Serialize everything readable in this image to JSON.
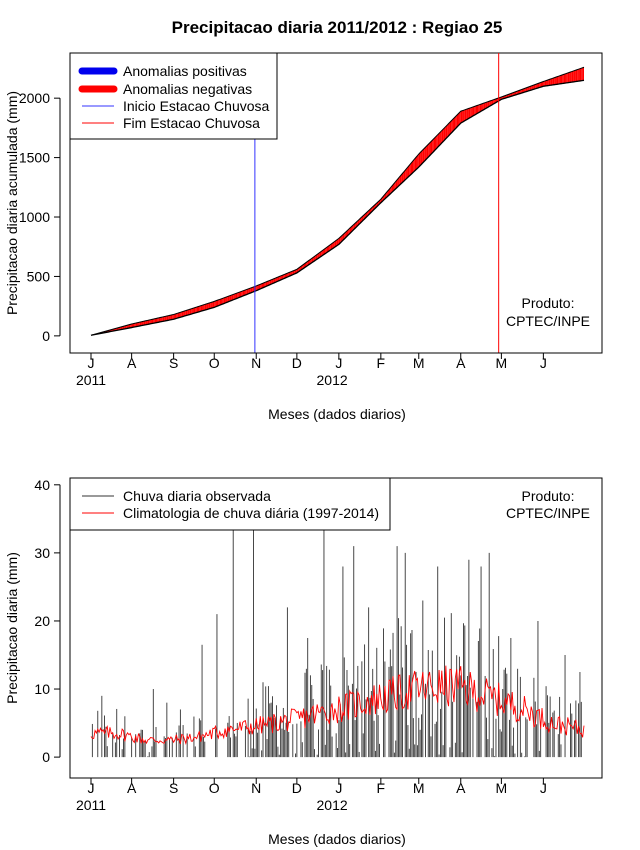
{
  "colors": {
    "positive": "#0000ee",
    "negative": "#ff0000",
    "start_line": "#3333ff",
    "end_line": "#ff0000",
    "observed": "#000000",
    "climatology": "#ff0000"
  },
  "chart_data": [
    {
      "type": "area",
      "title": "Precipitacao diaria 2011/2012 : Regiao 25",
      "xlabel": "Meses (dados diarios)",
      "ylabel": "Precipitacao diaria acumulada (mm)",
      "ylim": [
        -60,
        2380
      ],
      "yticks": [
        0,
        500,
        1000,
        1500,
        2000
      ],
      "xdays": 365,
      "month_ticks": [
        {
          "label": "J",
          "day": 0
        },
        {
          "label": "A",
          "day": 30
        },
        {
          "label": "S",
          "day": 61
        },
        {
          "label": "O",
          "day": 91
        },
        {
          "label": "N",
          "day": 122
        },
        {
          "label": "D",
          "day": 152
        },
        {
          "label": "J",
          "day": 183
        },
        {
          "label": "F",
          "day": 214
        },
        {
          "label": "M",
          "day": 242
        },
        {
          "label": "A",
          "day": 273
        },
        {
          "label": "M",
          "day": 303
        },
        {
          "label": "J",
          "day": 334
        }
      ],
      "year_labels": [
        {
          "label": "2011",
          "day": 0
        },
        {
          "label": "2012",
          "day": 178
        }
      ],
      "season_start_day": 121,
      "season_end_day": 301,
      "observed_cumulative": {
        "days": [
          0,
          30,
          61,
          91,
          122,
          152,
          183,
          214,
          242,
          273,
          303,
          334,
          364
        ],
        "values": [
          5,
          70,
          140,
          240,
          380,
          530,
          770,
          1120,
          1420,
          1790,
          1990,
          2100,
          2150
        ]
      },
      "climatology_cumulative": {
        "days": [
          0,
          30,
          61,
          91,
          122,
          152,
          183,
          214,
          242,
          273,
          303,
          334,
          364
        ],
        "values": [
          5,
          100,
          180,
          290,
          420,
          560,
          820,
          1150,
          1530,
          1890,
          2010,
          2140,
          2260
        ]
      },
      "legend": [
        {
          "label": "Anomalias positivas",
          "kind": "thick",
          "color": "#0000ee"
        },
        {
          "label": "Anomalias negativas",
          "kind": "thick",
          "color": "#ff0000"
        },
        {
          "label": "Inicio Estacao Chuvosa",
          "kind": "thin",
          "color": "#3333ff"
        },
        {
          "label": "Fim Estacao Chuvosa",
          "kind": "thin",
          "color": "#ff0000"
        }
      ],
      "annotation": [
        "Produto:",
        "CPTEC/INPE"
      ]
    },
    {
      "type": "line",
      "title": "",
      "xlabel": "Meses (dados diarios)",
      "ylabel": "Precipitacao diaria (mm)",
      "ylim": [
        -1.6,
        41
      ],
      "yticks": [
        0,
        10,
        20,
        30,
        40
      ],
      "xdays": 365,
      "month_ticks": [
        {
          "label": "J",
          "day": 0
        },
        {
          "label": "A",
          "day": 30
        },
        {
          "label": "S",
          "day": 61
        },
        {
          "label": "O",
          "day": 91
        },
        {
          "label": "N",
          "day": 122
        },
        {
          "label": "D",
          "day": 152
        },
        {
          "label": "J",
          "day": 183
        },
        {
          "label": "F",
          "day": 214
        },
        {
          "label": "M",
          "day": 242
        },
        {
          "label": "A",
          "day": 273
        },
        {
          "label": "M",
          "day": 303
        },
        {
          "label": "J",
          "day": 334
        }
      ],
      "year_labels": [
        {
          "label": "2011",
          "day": 0
        },
        {
          "label": "2012",
          "day": 178
        }
      ],
      "observed_daily": {
        "description_days": "spikes at day index",
        "peaks": [
          [
            8,
            9
          ],
          [
            25,
            6
          ],
          [
            46,
            10
          ],
          [
            56,
            8
          ],
          [
            66,
            7
          ],
          [
            82,
            16.5
          ],
          [
            93,
            21
          ],
          [
            105,
            34
          ],
          [
            120,
            34
          ],
          [
            127,
            11
          ],
          [
            133,
            8
          ],
          [
            145,
            22
          ],
          [
            160,
            17.5
          ],
          [
            172,
            34
          ],
          [
            186,
            28
          ],
          [
            194,
            31
          ],
          [
            205,
            22
          ],
          [
            226,
            31
          ],
          [
            232,
            30
          ],
          [
            245,
            23
          ],
          [
            256,
            28
          ],
          [
            273,
            12
          ],
          [
            279,
            29
          ],
          [
            288,
            28
          ],
          [
            294,
            30
          ],
          [
            304,
            10
          ],
          [
            310,
            17.5
          ],
          [
            330,
            20
          ],
          [
            350,
            15
          ],
          [
            361,
            12.5
          ]
        ]
      },
      "climatology_daily": {
        "days": [
          0,
          20,
          40,
          60,
          80,
          100,
          120,
          150,
          180,
          210,
          240,
          270,
          300,
          320,
          340,
          364
        ],
        "values": [
          3.5,
          3.5,
          2.5,
          2.5,
          3.0,
          4.0,
          4.5,
          5.5,
          7.0,
          8.5,
          10.0,
          10.5,
          8.5,
          7.0,
          5.0,
          4.0
        ]
      },
      "legend": [
        {
          "label": "Chuva diaria observada",
          "kind": "thin",
          "color": "#333333"
        },
        {
          "label": "Climatologia de chuva diária (1997-2014)",
          "kind": "thin",
          "color": "#ff0000"
        }
      ],
      "annotation": [
        "Produto:",
        "CPTEC/INPE"
      ]
    }
  ]
}
